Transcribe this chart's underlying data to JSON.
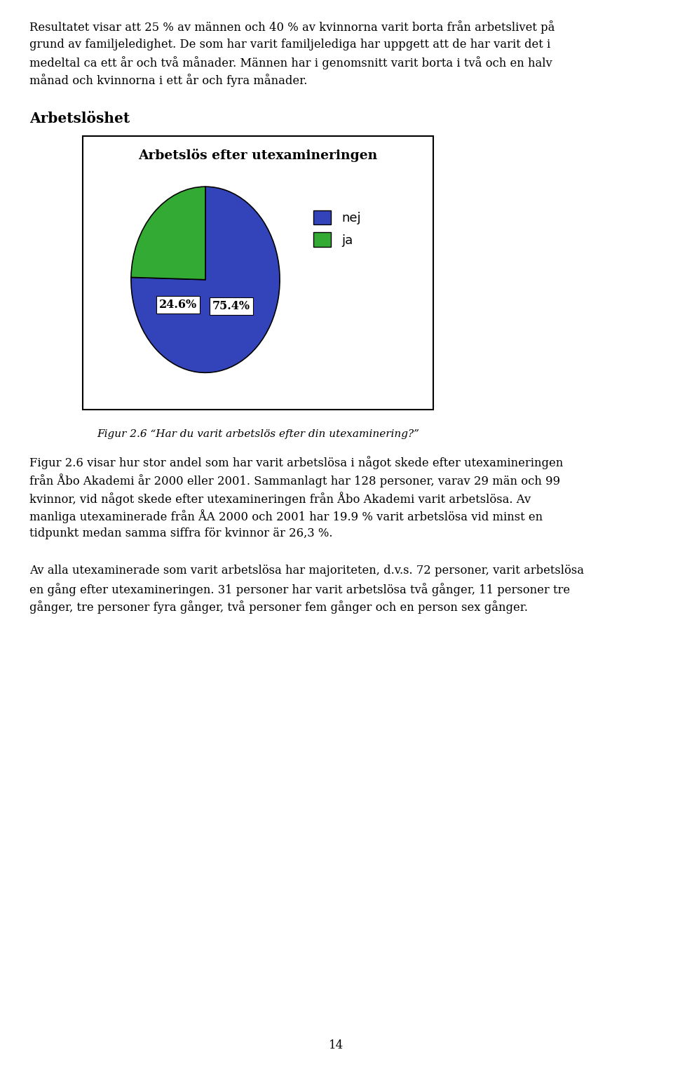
{
  "page_background": "#ffffff",
  "text_color": "#000000",
  "paragraph1_lines": [
    "Resultatet visar att 25 % av männen och 40 % av kvinnorna varit borta från arbetslivet på",
    "grund av familjeledighet. De som har varit familjelediga har uppgett att de har varit det i",
    "medeltal ca ett år och två månader. Männen har i genomsnitt varit borta i två och en halv",
    "månad och kvinnorna i ett år och fyra månader."
  ],
  "section_heading": "Arbetslöshet",
  "chart_title": "Arbetslös efter utexamineringen",
  "slice_nej_pct": 75.4,
  "slice_ja_pct": 24.6,
  "slice_nej_label": "75.4%",
  "slice_ja_label": "24.6%",
  "slice_nej_color": "#3344bb",
  "slice_ja_color": "#33aa33",
  "legend_nej": "nej",
  "legend_ja": "ja",
  "figure_caption": "Figur 2.6 “Har du varit arbetslös efter din utexaminering?”",
  "paragraph2_lines": [
    "Figur 2.6 visar hur stor andel som har varit arbetslösa i något skede efter utexamineringen",
    "från Åbo Akademi år 2000 eller 2001. Sammanlagt har 128 personer, varav 29 män och 99",
    "kvinnor, vid något skede efter utexamineringen från Åbo Akademi varit arbetslösa. Av",
    "manliga utexaminerade från ÅA 2000 och 2001 har 19.9 % varit arbetslösa vid minst en",
    "tidpunkt medan samma siffra för kvinnor är 26,3 %."
  ],
  "paragraph3_lines": [
    "Av alla utexaminerade som varit arbetslösa har majoriteten, d.v.s. 72 personer, varit arbetslösa",
    "en gång efter utexamineringen. 31 personer har varit arbetslösa två gånger, 11 personer tre",
    "gånger, tre personer fyra gånger, två personer fem gånger och en person sex gånger."
  ],
  "page_number": "14"
}
